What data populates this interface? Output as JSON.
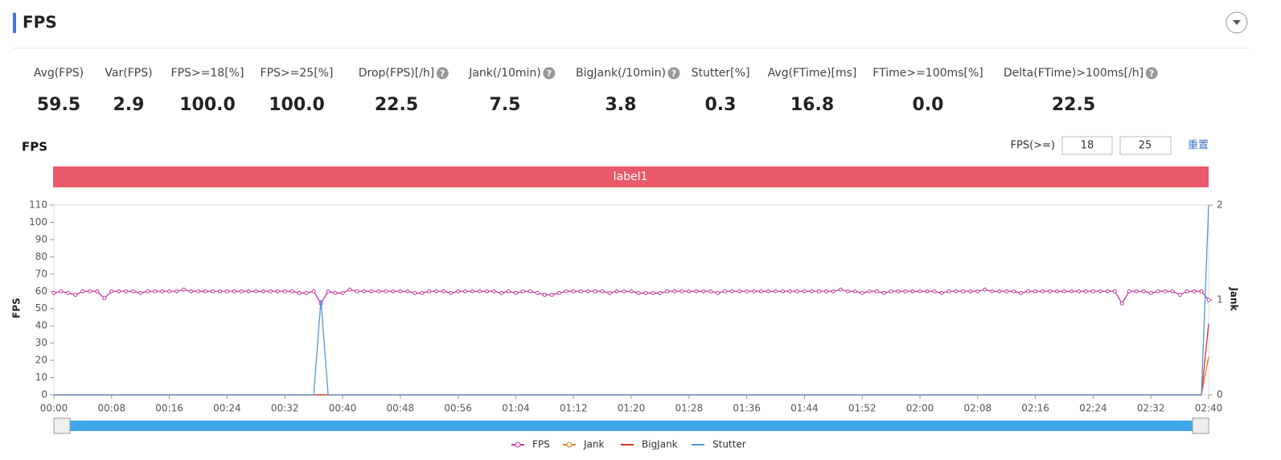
{
  "header": {
    "title": "FPS"
  },
  "metrics": [
    {
      "label": "Avg(FPS)",
      "value": "59.5"
    },
    {
      "label": "Var(FPS)",
      "value": "2.9"
    },
    {
      "label": "FPS>=18[%]",
      "value": "100.0"
    },
    {
      "label": "FPS>=25[%]",
      "value": "100.0"
    },
    {
      "label": "Drop(FPS)[/h]",
      "value": "22.5"
    },
    {
      "label": "Jank(/10min)",
      "value": "7.5"
    },
    {
      "label": "BigJank(/10min)",
      "value": "3.8"
    },
    {
      "label": "Stutter[%]",
      "value": "0.3"
    },
    {
      "label": "Avg(FTime)[ms]",
      "value": "16.8"
    },
    {
      "label": "FTime>=100ms[%]",
      "value": "0.0"
    },
    {
      "label": "Delta(FTime)>100ms[/h]",
      "value": "22.5"
    }
  ],
  "panel": {
    "title": "FPS",
    "filter_label": "FPS(>=)",
    "filter_low": "18",
    "filter_high": "25",
    "reset": "重置",
    "band_label": "label1"
  },
  "chart_data": {
    "type": "line",
    "y_label": "FPS",
    "y2_label": "Jank",
    "x": [
      0,
      1,
      2,
      3,
      4,
      5,
      6,
      7,
      8,
      9,
      10,
      11,
      12,
      13,
      14,
      15,
      16,
      17,
      18,
      19,
      20,
      21,
      22,
      23,
      24,
      25,
      26,
      27,
      28,
      29,
      30,
      31,
      32,
      33,
      34,
      35,
      36,
      37,
      38,
      39,
      40,
      41,
      42,
      43,
      44,
      45,
      46,
      47,
      48,
      49,
      50,
      51,
      52,
      53,
      54,
      55,
      56,
      57,
      58,
      59,
      60,
      61,
      62,
      63,
      64,
      65,
      66,
      67,
      68,
      69,
      70,
      71,
      72,
      73,
      74,
      75,
      76,
      77,
      78,
      79,
      80,
      81,
      82,
      83,
      84,
      85,
      86,
      87,
      88,
      89,
      90,
      91,
      92,
      93,
      94,
      95,
      96,
      97,
      98,
      99,
      100,
      101,
      102,
      103,
      104,
      105,
      106,
      107,
      108,
      109,
      110,
      111,
      112,
      113,
      114,
      115,
      116,
      117,
      118,
      119,
      120,
      121,
      122,
      123,
      124,
      125,
      126,
      127,
      128,
      129,
      130,
      131,
      132,
      133,
      134,
      135,
      136,
      137,
      138,
      139,
      140,
      141,
      142,
      143,
      144,
      145,
      146,
      147,
      148,
      149,
      150,
      151,
      152,
      153,
      154,
      155,
      156,
      157,
      158,
      159,
      160
    ],
    "xlim": [
      0,
      160
    ],
    "xticks": [
      {
        "value": 0,
        "label": "00:00"
      },
      {
        "value": 8,
        "label": "00:08"
      },
      {
        "value": 16,
        "label": "00:16"
      },
      {
        "value": 24,
        "label": "00:24"
      },
      {
        "value": 32,
        "label": "00:32"
      },
      {
        "value": 40,
        "label": "00:40"
      },
      {
        "value": 48,
        "label": "00:48"
      },
      {
        "value": 56,
        "label": "00:56"
      },
      {
        "value": 64,
        "label": "01:04"
      },
      {
        "value": 72,
        "label": "01:12"
      },
      {
        "value": 80,
        "label": "01:20"
      },
      {
        "value": 88,
        "label": "01:28"
      },
      {
        "value": 96,
        "label": "01:36"
      },
      {
        "value": 104,
        "label": "01:44"
      },
      {
        "value": 112,
        "label": "01:52"
      },
      {
        "value": 120,
        "label": "02:00"
      },
      {
        "value": 128,
        "label": "02:08"
      },
      {
        "value": 136,
        "label": "02:16"
      },
      {
        "value": 144,
        "label": "02:24"
      },
      {
        "value": 152,
        "label": "02:32"
      },
      {
        "value": 160,
        "label": "02:40"
      }
    ],
    "ylim": [
      0,
      110
    ],
    "yticks": [
      0,
      10,
      20,
      30,
      40,
      50,
      60,
      70,
      80,
      90,
      100,
      110
    ],
    "y2lim": [
      0,
      2
    ],
    "y2ticks": [
      0,
      1,
      2
    ],
    "series": [
      {
        "name": "FPS",
        "color": "#c2379c",
        "marker": true,
        "values": [
          59,
          60,
          59,
          58,
          60,
          60,
          60,
          56,
          60,
          60,
          60,
          60,
          59,
          60,
          60,
          60,
          60,
          60,
          61,
          60,
          60,
          60,
          60,
          60,
          60,
          60,
          60,
          60,
          60,
          60,
          60,
          60,
          60,
          60,
          59,
          59,
          60,
          53,
          60,
          59,
          59,
          61,
          60,
          60,
          60,
          60,
          60,
          60,
          60,
          60,
          59,
          59,
          60,
          60,
          60,
          59,
          60,
          60,
          60,
          60,
          60,
          60,
          59,
          60,
          59,
          60,
          60,
          59,
          58,
          58,
          59,
          60,
          60,
          60,
          60,
          60,
          60,
          59,
          60,
          60,
          60,
          59,
          59,
          59,
          59,
          60,
          60,
          60,
          60,
          60,
          60,
          60,
          59,
          60,
          60,
          60,
          60,
          60,
          60,
          60,
          60,
          60,
          60,
          60,
          60,
          60,
          60,
          60,
          60,
          61,
          60,
          60,
          59,
          60,
          60,
          59,
          60,
          60,
          60,
          60,
          60,
          60,
          60,
          59,
          60,
          60,
          60,
          60,
          60,
          61,
          60,
          60,
          60,
          60,
          59,
          60,
          60,
          60,
          60,
          60,
          60,
          60,
          60,
          60,
          60,
          60,
          60,
          60,
          53,
          60,
          60,
          60,
          59,
          60,
          60,
          60,
          58,
          60,
          60,
          60,
          55
        ]
      },
      {
        "name": "Jank",
        "color": "#e57e27",
        "axis": "y2",
        "values": [
          0,
          0,
          0,
          0,
          0,
          0,
          0,
          0,
          0,
          0,
          0,
          0,
          0,
          0,
          0,
          0,
          0,
          0,
          0,
          0,
          0,
          0,
          0,
          0,
          0,
          0,
          0,
          0,
          0,
          0,
          0,
          0,
          0,
          0,
          0,
          0,
          0,
          0,
          0,
          0,
          0,
          0,
          0,
          0,
          0,
          0,
          0,
          0,
          0,
          0,
          0,
          0,
          0,
          0,
          0,
          0,
          0,
          0,
          0,
          0,
          0,
          0,
          0,
          0,
          0,
          0,
          0,
          0,
          0,
          0,
          0,
          0,
          0,
          0,
          0,
          0,
          0,
          0,
          0,
          0,
          0,
          0,
          0,
          0,
          0,
          0,
          0,
          0,
          0,
          0,
          0,
          0,
          0,
          0,
          0,
          0,
          0,
          0,
          0,
          0,
          0,
          0,
          0,
          0,
          0,
          0,
          0,
          0,
          0,
          0,
          0,
          0,
          0,
          0,
          0,
          0,
          0,
          0,
          0,
          0,
          0,
          0,
          0,
          0,
          0,
          0,
          0,
          0,
          0,
          0,
          0,
          0,
          0,
          0,
          0,
          0,
          0,
          0,
          0,
          0,
          0,
          0,
          0,
          0,
          0,
          0,
          0,
          0,
          0,
          0,
          0,
          0,
          0,
          0,
          0,
          0,
          0,
          0,
          0,
          0,
          0.4
        ]
      },
      {
        "name": "BigJank",
        "color": "#d9312b",
        "axis": "y2",
        "values": [
          0,
          0,
          0,
          0,
          0,
          0,
          0,
          0,
          0,
          0,
          0,
          0,
          0,
          0,
          0,
          0,
          0,
          0,
          0,
          0,
          0,
          0,
          0,
          0,
          0,
          0,
          0,
          0,
          0,
          0,
          0,
          0,
          0,
          0,
          0,
          0,
          0,
          0,
          0,
          0,
          0,
          0,
          0,
          0,
          0,
          0,
          0,
          0,
          0,
          0,
          0,
          0,
          0,
          0,
          0,
          0,
          0,
          0,
          0,
          0,
          0,
          0,
          0,
          0,
          0,
          0,
          0,
          0,
          0,
          0,
          0,
          0,
          0,
          0,
          0,
          0,
          0,
          0,
          0,
          0,
          0,
          0,
          0,
          0,
          0,
          0,
          0,
          0,
          0,
          0,
          0,
          0,
          0,
          0,
          0,
          0,
          0,
          0,
          0,
          0,
          0,
          0,
          0,
          0,
          0,
          0,
          0,
          0,
          0,
          0,
          0,
          0,
          0,
          0,
          0,
          0,
          0,
          0,
          0,
          0,
          0,
          0,
          0,
          0,
          0,
          0,
          0,
          0,
          0,
          0,
          0,
          0,
          0,
          0,
          0,
          0,
          0,
          0,
          0,
          0,
          0,
          0,
          0,
          0,
          0,
          0,
          0,
          0,
          0,
          0,
          0,
          0,
          0,
          0,
          0,
          0,
          0,
          0,
          0,
          0,
          0.75
        ]
      },
      {
        "name": "Stutter",
        "color": "#4f98d6",
        "axis": "y2",
        "values": [
          0,
          0,
          0,
          0,
          0,
          0,
          0,
          0,
          0,
          0,
          0,
          0,
          0,
          0,
          0,
          0,
          0,
          0,
          0,
          0,
          0,
          0,
          0,
          0,
          0,
          0,
          0,
          0,
          0,
          0,
          0,
          0,
          0,
          0,
          0,
          0,
          0,
          1,
          0,
          0,
          0,
          0,
          0,
          0,
          0,
          0,
          0,
          0,
          0,
          0,
          0,
          0,
          0,
          0,
          0,
          0,
          0,
          0,
          0,
          0,
          0,
          0,
          0,
          0,
          0,
          0,
          0,
          0,
          0,
          0,
          0,
          0,
          0,
          0,
          0,
          0,
          0,
          0,
          0,
          0,
          0,
          0,
          0,
          0,
          0,
          0,
          0,
          0,
          0,
          0,
          0,
          0,
          0,
          0,
          0,
          0,
          0,
          0,
          0,
          0,
          0,
          0,
          0,
          0,
          0,
          0,
          0,
          0,
          0,
          0,
          0,
          0,
          0,
          0,
          0,
          0,
          0,
          0,
          0,
          0,
          0,
          0,
          0,
          0,
          0,
          0,
          0,
          0,
          0,
          0,
          0,
          0,
          0,
          0,
          0,
          0,
          0,
          0,
          0,
          0,
          0,
          0,
          0,
          0,
          0,
          0,
          0,
          0,
          0,
          0,
          0,
          0,
          0,
          0,
          0,
          0,
          0,
          0,
          0,
          0,
          2
        ]
      }
    ]
  }
}
